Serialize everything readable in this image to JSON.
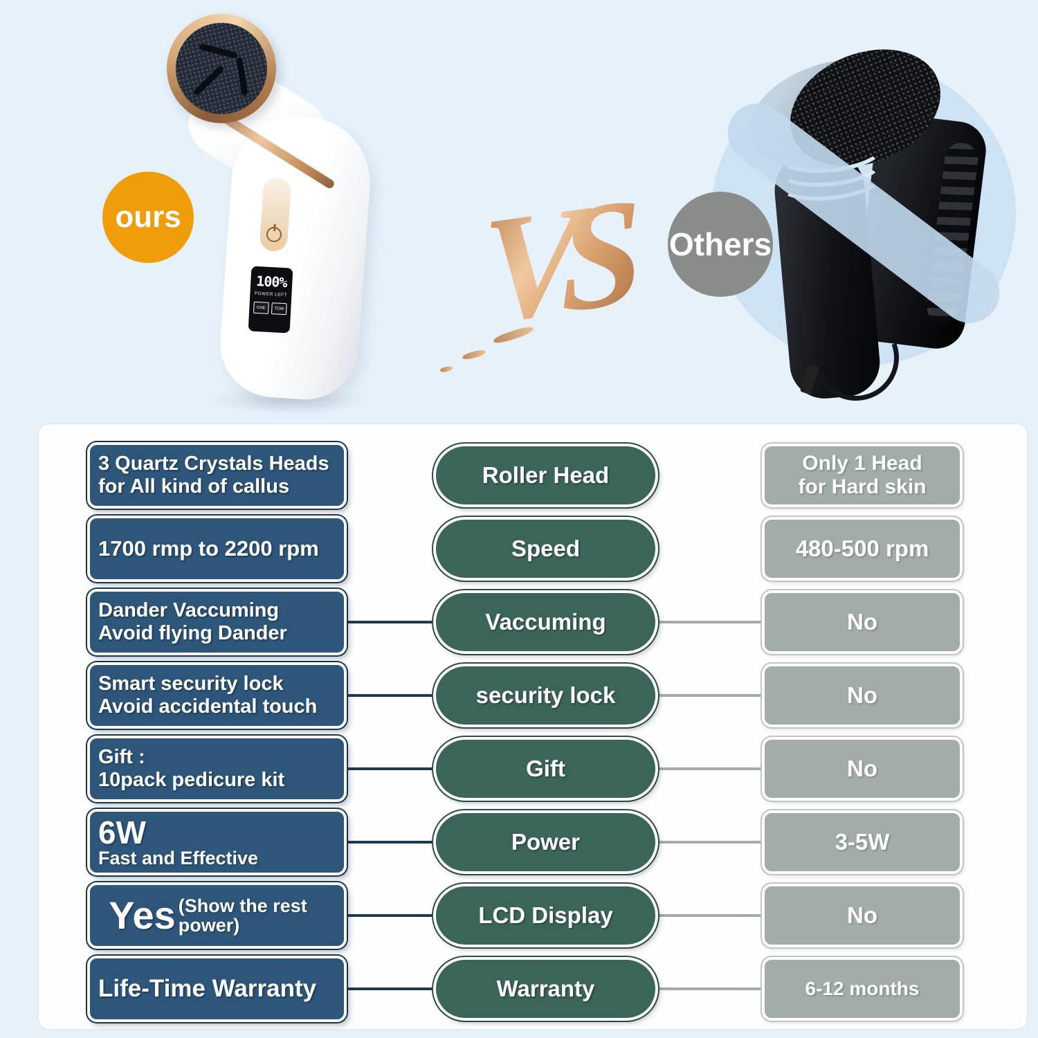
{
  "hero": {
    "ours_label": "ours",
    "vs_label": "VS",
    "others_label": "Others",
    "lcd": {
      "percent": "100%",
      "caption": "POWER LEFT",
      "mode_one": "ONE",
      "mode_two": "TOW"
    }
  },
  "table": {
    "rows": [
      {
        "left1": "3 Quartz Crystals Heads",
        "left2": "for All kind of callus",
        "mid": "Roller Head",
        "right1": "Only 1 Head",
        "right2": "for Hard skin"
      },
      {
        "left1": "1700 rmp to 2200 rpm",
        "mid": "Speed",
        "right1": "480-500 rpm"
      },
      {
        "left1": "Dander Vaccuming",
        "left2": "Avoid flying Dander",
        "mid": "Vaccuming",
        "right1": "No"
      },
      {
        "left1": "Smart security lock",
        "left2": "Avoid accidental touch",
        "mid": "security lock",
        "right1": "No"
      },
      {
        "left1": "Gift :",
        "left2": "10pack pedicure kit",
        "mid": "Gift",
        "right1": "No"
      },
      {
        "left_big": "6W",
        "left_sub": "Fast and Effective",
        "mid": "Power",
        "right1": "3-5W"
      },
      {
        "left_big": "Yes",
        "left_sub": "(Show the rest power)",
        "mid": "LCD Display",
        "right1": "No"
      },
      {
        "left1": "Life-Time Warranty",
        "mid": "Warranty",
        "right1": "6-12 months"
      }
    ]
  },
  "colors": {
    "background": "#e6f1fa",
    "panel": "#fefefe",
    "ours_pill": "#2d567a",
    "feature_pill": "#3c655a",
    "others_pill": "#a2adaa",
    "ours_badge": "#f09d0b",
    "others_badge": "#8a8c8b",
    "rose_gold": "#d9a06d",
    "connector_dark": "#1b3a55",
    "connector_gray": "#a3acaa"
  }
}
